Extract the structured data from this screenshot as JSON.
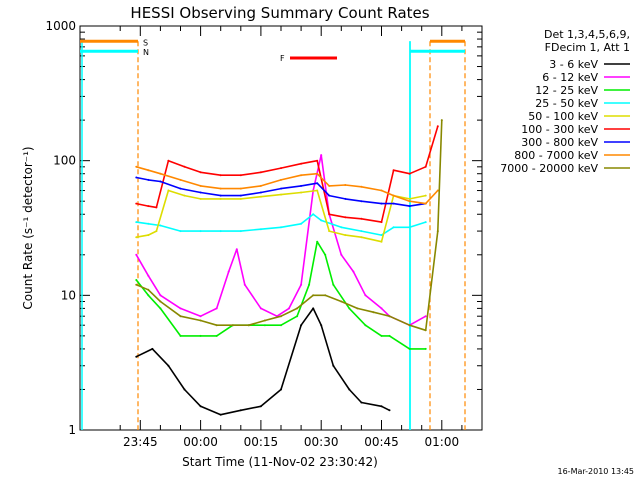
{
  "chart_data": {
    "type": "line",
    "title": "HESSI Observing Summary Count Rates",
    "xlabel": "Start Time (11-Nov-02 23:30:42)",
    "ylabel": "Count Rate (s⁻¹ detector⁻¹)",
    "y_scale": "log",
    "ylim": [
      1,
      1000
    ],
    "xlim": [
      "23:30",
      "01:10"
    ],
    "y_ticks": [
      "1",
      "10",
      "100",
      "1000"
    ],
    "x_ticks": [
      "23:45",
      "00:00",
      "00:15",
      "00:30",
      "00:45",
      "01:00"
    ],
    "legend_header": [
      "Det 1,3,4,5,6,9,",
      "FDecim 1, Att 1"
    ],
    "legend_position": "right",
    "flag_labels": {
      "saa": "S",
      "night": "N",
      "flare": "F"
    },
    "colors": {
      "3-6": "#000000",
      "6-12": "#ff00ff",
      "12-25": "#00ee00",
      "25-50": "#00ffff",
      "50-100": "#dddd00",
      "100-300": "#ff0000",
      "300-800": "#0000ff",
      "800-7000": "#ff8800",
      "7000-20000": "#888800",
      "night_line": "#00ffff",
      "saa_line": "#ff8800",
      "flare_bar": "#ff0000"
    },
    "series": [
      {
        "name": "3 - 6 keV",
        "key": "3-6",
        "points": [
          [
            "23:44",
            3.5
          ],
          [
            "23:48",
            4
          ],
          [
            "23:52",
            3
          ],
          [
            "23:56",
            2
          ],
          [
            "00:00",
            1.5
          ],
          [
            "00:05",
            1.3
          ],
          [
            "00:10",
            1.4
          ],
          [
            "00:15",
            1.5
          ],
          [
            "00:20",
            2
          ],
          [
            "00:25",
            6
          ],
          [
            "00:28",
            8
          ],
          [
            "00:30",
            6
          ],
          [
            "00:33",
            3
          ],
          [
            "00:37",
            2
          ],
          [
            "00:40",
            1.6
          ],
          [
            "00:45",
            1.5
          ],
          [
            "00:47",
            1.4
          ]
        ]
      },
      {
        "name": "6 - 12 keV",
        "key": "6-12",
        "points": [
          [
            "23:44",
            20
          ],
          [
            "23:47",
            14
          ],
          [
            "23:50",
            10
          ],
          [
            "23:55",
            8
          ],
          [
            "00:00",
            7
          ],
          [
            "00:04",
            8
          ],
          [
            "00:07",
            15
          ],
          [
            "00:09",
            22
          ],
          [
            "00:11",
            12
          ],
          [
            "00:15",
            8
          ],
          [
            "00:19",
            7
          ],
          [
            "00:22",
            8
          ],
          [
            "00:25",
            12
          ],
          [
            "00:28",
            60
          ],
          [
            "00:30",
            110
          ],
          [
            "00:32",
            40
          ],
          [
            "00:35",
            20
          ],
          [
            "00:38",
            15
          ],
          [
            "00:41",
            10
          ],
          [
            "00:45",
            8
          ],
          [
            "00:47",
            7
          ],
          [
            "00:52",
            6
          ],
          [
            "00:56",
            7
          ]
        ]
      },
      {
        "name": "12 - 25 keV",
        "key": "12-25",
        "points": [
          [
            "23:44",
            13
          ],
          [
            "23:47",
            10
          ],
          [
            "23:50",
            8
          ],
          [
            "23:55",
            5
          ],
          [
            "00:00",
            5
          ],
          [
            "00:04",
            5
          ],
          [
            "00:08",
            6
          ],
          [
            "00:12",
            6
          ],
          [
            "00:16",
            6
          ],
          [
            "00:20",
            6
          ],
          [
            "00:24",
            7
          ],
          [
            "00:27",
            12
          ],
          [
            "00:29",
            25
          ],
          [
            "00:31",
            20
          ],
          [
            "00:33",
            12
          ],
          [
            "00:37",
            8
          ],
          [
            "00:41",
            6
          ],
          [
            "00:45",
            5
          ],
          [
            "00:47",
            5
          ],
          [
            "00:52",
            4
          ],
          [
            "00:56",
            4
          ]
        ]
      },
      {
        "name": "25 - 50 keV",
        "key": "25-50",
        "points": [
          [
            "23:44",
            35
          ],
          [
            "23:47",
            34
          ],
          [
            "23:50",
            33
          ],
          [
            "23:55",
            30
          ],
          [
            "00:00",
            30
          ],
          [
            "00:05",
            30
          ],
          [
            "00:10",
            30
          ],
          [
            "00:15",
            31
          ],
          [
            "00:20",
            32
          ],
          [
            "00:25",
            34
          ],
          [
            "00:28",
            40
          ],
          [
            "00:30",
            36
          ],
          [
            "00:35",
            32
          ],
          [
            "00:40",
            30
          ],
          [
            "00:45",
            28
          ],
          [
            "00:48",
            32
          ],
          [
            "00:52",
            32
          ],
          [
            "00:56",
            35
          ]
        ]
      },
      {
        "name": "50 - 100 keV",
        "key": "50-100",
        "points": [
          [
            "23:44",
            27
          ],
          [
            "23:47",
            28
          ],
          [
            "23:49",
            30
          ],
          [
            "23:52",
            60
          ],
          [
            "23:56",
            55
          ],
          [
            "00:00",
            52
          ],
          [
            "00:05",
            52
          ],
          [
            "00:10",
            52
          ],
          [
            "00:15",
            54
          ],
          [
            "00:20",
            56
          ],
          [
            "00:25",
            58
          ],
          [
            "00:29",
            60
          ],
          [
            "00:32",
            30
          ],
          [
            "00:36",
            28
          ],
          [
            "00:40",
            27
          ],
          [
            "00:45",
            25
          ],
          [
            "00:48",
            55
          ],
          [
            "00:52",
            52
          ],
          [
            "00:56",
            55
          ]
        ]
      },
      {
        "name": "100 - 300 keV",
        "key": "100-300",
        "points": [
          [
            "23:44",
            48
          ],
          [
            "23:47",
            46
          ],
          [
            "23:49",
            45
          ],
          [
            "23:52",
            100
          ],
          [
            "23:56",
            90
          ],
          [
            "00:00",
            82
          ],
          [
            "00:05",
            78
          ],
          [
            "00:10",
            78
          ],
          [
            "00:15",
            82
          ],
          [
            "00:20",
            88
          ],
          [
            "00:25",
            95
          ],
          [
            "00:29",
            100
          ],
          [
            "00:32",
            40
          ],
          [
            "00:36",
            38
          ],
          [
            "00:40",
            37
          ],
          [
            "00:45",
            35
          ],
          [
            "00:48",
            85
          ],
          [
            "00:52",
            80
          ],
          [
            "00:56",
            90
          ],
          [
            "00:59",
            180
          ]
        ]
      },
      {
        "name": "300 - 800 keV",
        "key": "300-800",
        "points": [
          [
            "23:44",
            75
          ],
          [
            "23:47",
            72
          ],
          [
            "23:50",
            70
          ],
          [
            "23:55",
            62
          ],
          [
            "00:00",
            58
          ],
          [
            "00:05",
            55
          ],
          [
            "00:10",
            55
          ],
          [
            "00:15",
            58
          ],
          [
            "00:20",
            62
          ],
          [
            "00:25",
            65
          ],
          [
            "00:29",
            68
          ],
          [
            "00:32",
            55
          ],
          [
            "00:36",
            52
          ],
          [
            "00:40",
            50
          ],
          [
            "00:45",
            48
          ],
          [
            "00:48",
            48
          ],
          [
            "00:52",
            46
          ],
          [
            "00:56",
            48
          ]
        ]
      },
      {
        "name": "800 - 7000 keV",
        "key": "800-7000",
        "points": [
          [
            "23:44",
            90
          ],
          [
            "23:47",
            85
          ],
          [
            "23:50",
            80
          ],
          [
            "23:55",
            72
          ],
          [
            "00:00",
            65
          ],
          [
            "00:05",
            62
          ],
          [
            "00:10",
            62
          ],
          [
            "00:15",
            65
          ],
          [
            "00:20",
            72
          ],
          [
            "00:25",
            78
          ],
          [
            "00:29",
            80
          ],
          [
            "00:32",
            65
          ],
          [
            "00:36",
            66
          ],
          [
            "00:40",
            64
          ],
          [
            "00:45",
            60
          ],
          [
            "00:48",
            55
          ],
          [
            "00:52",
            50
          ],
          [
            "00:56",
            48
          ],
          [
            "00:59",
            60
          ]
        ]
      },
      {
        "name": "7000 - 20000 keV",
        "key": "7000-20000",
        "points": [
          [
            "23:44",
            12
          ],
          [
            "23:47",
            11
          ],
          [
            "23:50",
            9
          ],
          [
            "23:55",
            7
          ],
          [
            "00:00",
            6.5
          ],
          [
            "00:04",
            6
          ],
          [
            "00:08",
            6
          ],
          [
            "00:12",
            6
          ],
          [
            "00:16",
            6.5
          ],
          [
            "00:20",
            7
          ],
          [
            "00:24",
            8
          ],
          [
            "00:28",
            10
          ],
          [
            "00:31",
            10
          ],
          [
            "00:35",
            9
          ],
          [
            "00:39",
            8
          ],
          [
            "00:43",
            7.5
          ],
          [
            "00:47",
            7
          ],
          [
            "00:52",
            6
          ],
          [
            "00:56",
            5.5
          ],
          [
            "00:59",
            30
          ],
          [
            "01:00",
            200
          ]
        ]
      }
    ],
    "timestamp": "16-Mar-2010 13:45"
  }
}
